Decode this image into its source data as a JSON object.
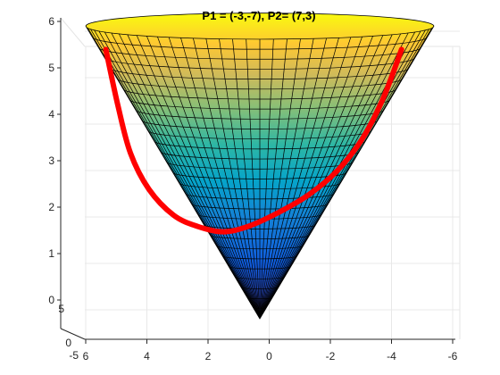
{
  "chart_data": {
    "type": "surface",
    "title": "P1 = (-3,-7), P2= (7,3)",
    "surface": "cone z = sqrt(x^2+y^2)",
    "colormap": "parula",
    "grid": true,
    "x_ticks": [
      "6",
      "4",
      "2",
      "0",
      "-2",
      "-4",
      "-6"
    ],
    "z_ticks": [
      "0",
      "1",
      "2",
      "3",
      "4",
      "5",
      "6"
    ],
    "y_ticks": [
      "5",
      "0",
      "-5"
    ],
    "zlim": [
      0,
      6
    ],
    "xlim": [
      -6,
      6
    ],
    "ylim": [
      -6,
      6
    ],
    "path_series": {
      "color": "#ff0000",
      "points": [
        {
          "x": 5.0,
          "z": 5.2
        },
        {
          "x": 4.6,
          "z": 4.1
        },
        {
          "x": 4.2,
          "z": 3.2
        },
        {
          "x": 3.6,
          "z": 2.5
        },
        {
          "x": 2.8,
          "z": 2.0
        },
        {
          "x": 2.0,
          "z": 1.78
        },
        {
          "x": 1.2,
          "z": 1.68
        },
        {
          "x": 0.4,
          "z": 1.78
        },
        {
          "x": -0.6,
          "z": 2.05
        },
        {
          "x": -1.6,
          "z": 2.4
        },
        {
          "x": -2.5,
          "z": 2.85
        },
        {
          "x": -3.3,
          "z": 3.45
        },
        {
          "x": -4.0,
          "z": 4.25
        },
        {
          "x": -4.6,
          "z": 5.2
        }
      ]
    }
  }
}
